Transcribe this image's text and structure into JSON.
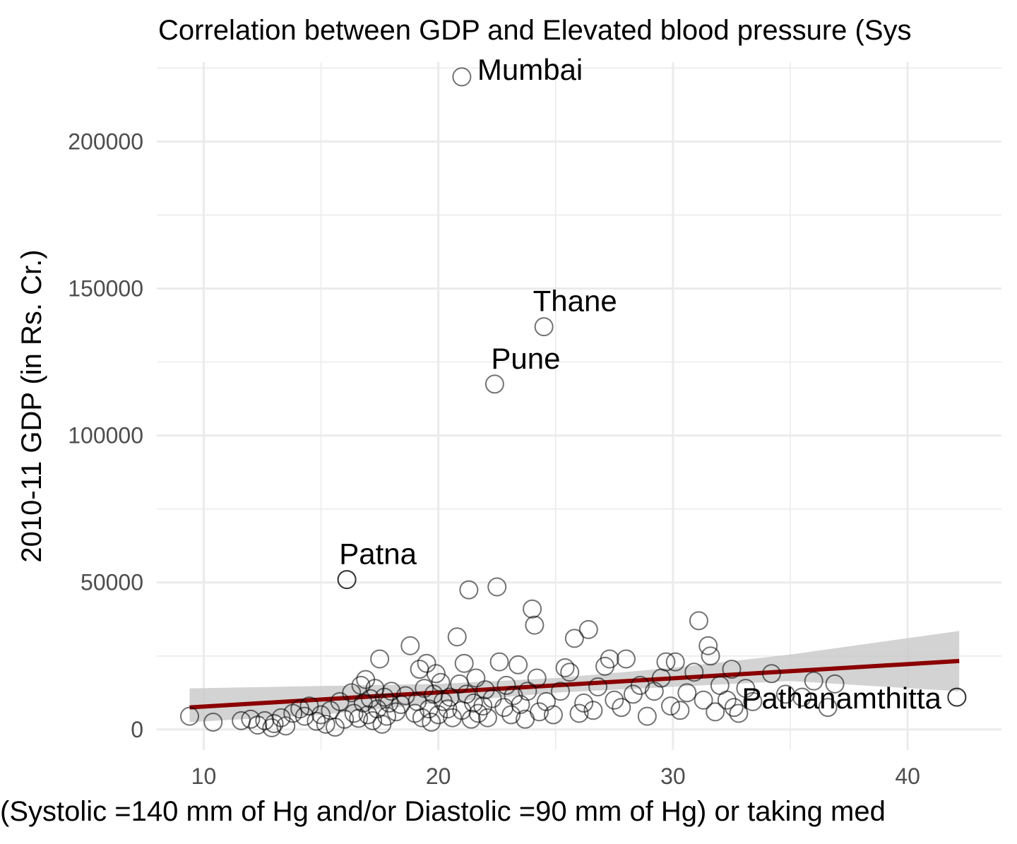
{
  "chart_data": {
    "type": "scatter",
    "title": "Correlation between GDP and Elevated blood pressure (Sys",
    "xlabel": "(Systolic =140 mm of Hg and/or Diastolic =90 mm of Hg) or taking med",
    "ylabel": "2010-11 GDP (in Rs. Cr.)",
    "xlim": [
      8,
      44
    ],
    "ylim": [
      -7000,
      227000
    ],
    "x_ticks": [
      10,
      20,
      30,
      40
    ],
    "x_tick_labels": [
      "10",
      "20",
      "30",
      "40"
    ],
    "y_ticks": [
      0,
      50000,
      100000,
      150000,
      200000
    ],
    "y_tick_labels": [
      "0",
      "50000",
      "100000",
      "150000",
      "200000"
    ],
    "grid": true,
    "colors": {
      "trend": "#8b0000",
      "band": "#c8c8c8",
      "point_stroke": "#000000",
      "grid": "#ebebeb"
    },
    "trend": {
      "x": [
        9.4,
        42.2
      ],
      "y": [
        7500,
        23300
      ]
    },
    "confidence_band": {
      "x": [
        9.4,
        15,
        20,
        25,
        30,
        35,
        42.2
      ],
      "upper": [
        14000,
        14800,
        15500,
        17500,
        21000,
        25500,
        33500
      ],
      "lower": [
        2500,
        5000,
        9000,
        12500,
        14500,
        16500,
        13000
      ]
    },
    "labeled_points": [
      {
        "name": "Mumbai",
        "x": 21.0,
        "y": 222000
      },
      {
        "name": "Thane",
        "x": 24.5,
        "y": 137000
      },
      {
        "name": "Pune",
        "x": 22.4,
        "y": 117500
      },
      {
        "name": "Patna",
        "x": 16.1,
        "y": 51000
      },
      {
        "name": "Pathanamthitta",
        "x": 42.1,
        "y": 11000
      }
    ],
    "points": [
      [
        9.4,
        4500
      ],
      [
        10.4,
        2500
      ],
      [
        11.6,
        3000
      ],
      [
        12.0,
        3500
      ],
      [
        12.3,
        1500
      ],
      [
        12.6,
        3000
      ],
      [
        12.9,
        600
      ],
      [
        13.0,
        2000
      ],
      [
        13.3,
        4000
      ],
      [
        13.5,
        1200
      ],
      [
        13.8,
        5500
      ],
      [
        14.1,
        7000
      ],
      [
        14.3,
        4500
      ],
      [
        14.5,
        8000
      ],
      [
        14.8,
        2800
      ],
      [
        15.0,
        5000
      ],
      [
        15.2,
        1800
      ],
      [
        15.4,
        6500
      ],
      [
        15.6,
        800
      ],
      [
        15.8,
        9500
      ],
      [
        16.0,
        3500
      ],
      [
        16.1,
        51000
      ],
      [
        16.3,
        12500
      ],
      [
        16.4,
        5500
      ],
      [
        16.6,
        3800
      ],
      [
        16.7,
        15000
      ],
      [
        16.8,
        9000
      ],
      [
        16.9,
        17000
      ],
      [
        17.0,
        5000
      ],
      [
        17.1,
        10500
      ],
      [
        17.2,
        3000
      ],
      [
        17.3,
        14000
      ],
      [
        17.4,
        7000
      ],
      [
        17.5,
        24000
      ],
      [
        17.6,
        1800
      ],
      [
        17.7,
        11000
      ],
      [
        17.8,
        4500
      ],
      [
        17.9,
        9000
      ],
      [
        18.0,
        13000
      ],
      [
        18.2,
        6000
      ],
      [
        18.4,
        8500
      ],
      [
        18.6,
        11500
      ],
      [
        18.8,
        28500
      ],
      [
        19.0,
        5500
      ],
      [
        19.1,
        9500
      ],
      [
        19.2,
        20500
      ],
      [
        19.3,
        4000
      ],
      [
        19.4,
        14000
      ],
      [
        19.5,
        22500
      ],
      [
        19.6,
        7000
      ],
      [
        19.7,
        2500
      ],
      [
        19.8,
        12000
      ],
      [
        19.9,
        19000
      ],
      [
        20.0,
        5000
      ],
      [
        20.1,
        16000
      ],
      [
        20.2,
        9500
      ],
      [
        20.4,
        7000
      ],
      [
        20.5,
        11000
      ],
      [
        20.6,
        4000
      ],
      [
        20.8,
        31500
      ],
      [
        20.9,
        15500
      ],
      [
        21.0,
        6500
      ],
      [
        21.1,
        22500
      ],
      [
        21.2,
        12000
      ],
      [
        21.3,
        47500
      ],
      [
        21.4,
        3500
      ],
      [
        21.5,
        9000
      ],
      [
        21.6,
        17500
      ],
      [
        21.7,
        5500
      ],
      [
        21.9,
        8000
      ],
      [
        22.0,
        13500
      ],
      [
        22.1,
        4000
      ],
      [
        22.3,
        10500
      ],
      [
        22.5,
        48500
      ],
      [
        22.6,
        23000
      ],
      [
        22.8,
        7500
      ],
      [
        22.9,
        15000
      ],
      [
        23.1,
        5000
      ],
      [
        23.2,
        11500
      ],
      [
        23.4,
        22000
      ],
      [
        23.5,
        8500
      ],
      [
        23.7,
        3500
      ],
      [
        23.8,
        13000
      ],
      [
        24.0,
        41000
      ],
      [
        24.1,
        35500
      ],
      [
        24.2,
        17500
      ],
      [
        24.3,
        6000
      ],
      [
        24.6,
        9500
      ],
      [
        24.9,
        5000
      ],
      [
        25.2,
        13000
      ],
      [
        25.4,
        21000
      ],
      [
        25.6,
        19500
      ],
      [
        25.8,
        31000
      ],
      [
        26.0,
        5500
      ],
      [
        26.2,
        9000
      ],
      [
        26.4,
        34000
      ],
      [
        26.6,
        6500
      ],
      [
        26.8,
        14500
      ],
      [
        27.1,
        21500
      ],
      [
        27.3,
        24000
      ],
      [
        27.5,
        10000
      ],
      [
        27.8,
        7500
      ],
      [
        28.0,
        24000
      ],
      [
        28.3,
        12000
      ],
      [
        28.6,
        15000
      ],
      [
        28.9,
        4500
      ],
      [
        29.2,
        13000
      ],
      [
        29.5,
        17500
      ],
      [
        29.7,
        23000
      ],
      [
        29.9,
        8000
      ],
      [
        30.1,
        23000
      ],
      [
        30.3,
        6500
      ],
      [
        30.6,
        12500
      ],
      [
        30.9,
        19500
      ],
      [
        31.1,
        37000
      ],
      [
        31.3,
        10000
      ],
      [
        31.5,
        28500
      ],
      [
        31.6,
        25000
      ],
      [
        31.8,
        6000
      ],
      [
        32.0,
        15000
      ],
      [
        32.3,
        10000
      ],
      [
        32.5,
        20500
      ],
      [
        32.6,
        7500
      ],
      [
        32.8,
        5500
      ],
      [
        33.1,
        14000
      ],
      [
        33.4,
        9500
      ],
      [
        34.2,
        19000
      ],
      [
        34.8,
        12000
      ],
      [
        35.5,
        11000
      ],
      [
        36.0,
        16500
      ],
      [
        36.6,
        7500
      ],
      [
        36.9,
        15500
      ],
      [
        42.1,
        11000
      ]
    ]
  }
}
